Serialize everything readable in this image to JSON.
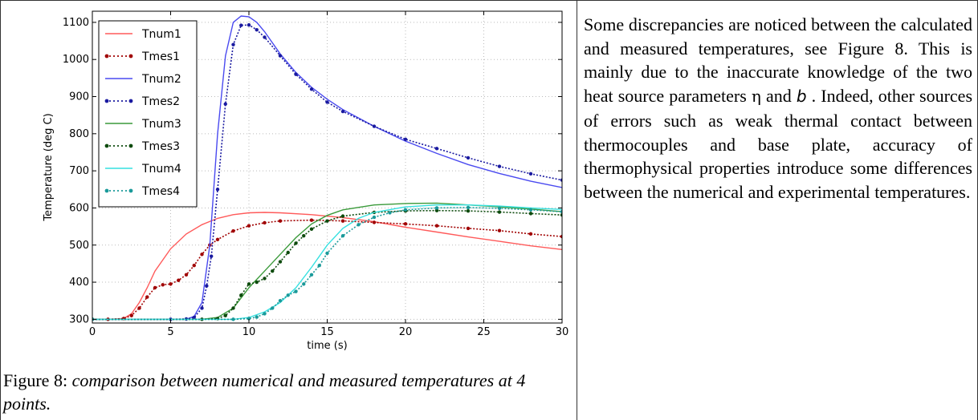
{
  "figure": {
    "caption_label": "Figure 8: ",
    "caption_text": "comparison between numerical and measured temperatures at 4 points."
  },
  "paragraph": {
    "part1": "Some discrepancies are noticed between the calculated and measured temperatures, see Figure 8. This is mainly due to the inaccurate knowledge of the two heat source parameters ",
    "eta": "η",
    "and": " and ",
    "b": "b",
    "part2": " . Indeed, other sources of errors such as weak thermal contact between thermocouples and base plate, accuracy of thermophysical properties introduce some differences between the numerical and experimental temperatures."
  },
  "chart_data": {
    "type": "line",
    "xlabel": "time (s)",
    "ylabel": "Temperature (deg C)",
    "xlim": [
      0,
      30
    ],
    "ylim": [
      290,
      1130
    ],
    "xticks": [
      0,
      5,
      10,
      15,
      20,
      25,
      30
    ],
    "yticks": [
      300,
      400,
      500,
      600,
      700,
      800,
      900,
      1000,
      1100
    ],
    "grid": true,
    "legend_position": "top-left",
    "series": [
      {
        "name": "Tnum1",
        "style": "line",
        "color": "#ff5a5a",
        "x": [
          0,
          1,
          2,
          2.5,
          3,
          3.5,
          4,
          5,
          6,
          7,
          8,
          9,
          10,
          11,
          12,
          14,
          16,
          18,
          20,
          22,
          24,
          26,
          28,
          30
        ],
        "y": [
          300,
          300,
          302,
          315,
          345,
          385,
          430,
          490,
          530,
          555,
          572,
          582,
          587,
          588,
          587,
          582,
          574,
          563,
          548,
          535,
          522,
          510,
          498,
          488
        ]
      },
      {
        "name": "Tmes1",
        "style": "dots",
        "color": "#a00000",
        "x": [
          0,
          1,
          2,
          2.5,
          3,
          3.5,
          4,
          4.5,
          5,
          5.5,
          6,
          6.5,
          7,
          7.5,
          8,
          9,
          10,
          11,
          12,
          14,
          16,
          18,
          20,
          22,
          24,
          26,
          28,
          30
        ],
        "y": [
          300,
          300,
          302,
          310,
          330,
          360,
          385,
          393,
          395,
          405,
          420,
          445,
          475,
          500,
          515,
          538,
          552,
          560,
          565,
          567,
          565,
          561,
          557,
          552,
          545,
          539,
          530,
          523
        ]
      },
      {
        "name": "Tnum2",
        "style": "line",
        "color": "#4a4af0",
        "x": [
          0,
          6,
          6.5,
          7,
          7.5,
          8,
          8.5,
          9,
          9.5,
          10,
          10.5,
          11,
          12,
          13,
          14,
          15,
          16,
          18,
          20,
          22,
          24,
          26,
          28,
          30
        ],
        "y": [
          300,
          300,
          308,
          345,
          500,
          800,
          1010,
          1100,
          1117,
          1115,
          1100,
          1075,
          1015,
          965,
          925,
          893,
          865,
          820,
          780,
          747,
          717,
          693,
          672,
          655
        ]
      },
      {
        "name": "Tmes2",
        "style": "dots",
        "color": "#1a1aa0",
        "x": [
          0,
          5,
          6,
          6.5,
          7,
          7.3,
          7.6,
          8,
          8.5,
          9,
          9.5,
          10,
          10.5,
          11,
          12,
          13,
          14,
          15,
          16,
          18,
          20,
          22,
          24,
          26,
          28,
          30
        ],
        "y": [
          300,
          300,
          301,
          305,
          330,
          390,
          470,
          650,
          880,
          1040,
          1092,
          1093,
          1080,
          1060,
          1010,
          960,
          920,
          885,
          860,
          820,
          785,
          760,
          735,
          712,
          692,
          675
        ]
      },
      {
        "name": "Tnum3",
        "style": "line",
        "color": "#3a9a3a",
        "x": [
          0,
          7,
          8,
          9,
          10,
          11,
          12,
          13,
          14,
          15,
          16,
          18,
          20,
          22,
          24,
          26,
          28,
          30
        ],
        "y": [
          300,
          300,
          305,
          330,
          385,
          430,
          475,
          520,
          557,
          580,
          595,
          608,
          612,
          613,
          608,
          603,
          597,
          590
        ]
      },
      {
        "name": "Tmes3",
        "style": "dots",
        "color": "#0c4a0c",
        "x": [
          0,
          7,
          8,
          8.5,
          9,
          9.5,
          10,
          10.5,
          11,
          11.5,
          12,
          12.5,
          13,
          13.5,
          14,
          15,
          16,
          18,
          20,
          22,
          24,
          26,
          28,
          30
        ],
        "y": [
          300,
          300,
          302,
          310,
          330,
          365,
          395,
          400,
          410,
          430,
          455,
          480,
          505,
          525,
          543,
          565,
          578,
          588,
          592,
          593,
          592,
          589,
          585,
          581
        ]
      },
      {
        "name": "Tnum4",
        "style": "line",
        "color": "#35e0e0",
        "x": [
          0,
          9,
          10,
          11,
          12,
          13,
          14,
          15,
          16,
          17,
          18,
          20,
          22,
          24,
          26,
          28,
          30
        ],
        "y": [
          300,
          300,
          305,
          320,
          345,
          385,
          440,
          500,
          545,
          572,
          588,
          603,
          608,
          608,
          605,
          600,
          596
        ]
      },
      {
        "name": "Tmes4",
        "style": "dots",
        "color": "#1a9a9a",
        "x": [
          0,
          9,
          10,
          10.5,
          11,
          11.5,
          12,
          12.5,
          13,
          13.5,
          14,
          14.5,
          15,
          16,
          17,
          18,
          19,
          20,
          22,
          24,
          26,
          28,
          30
        ],
        "y": [
          300,
          300,
          302,
          306,
          315,
          330,
          350,
          365,
          375,
          395,
          420,
          445,
          478,
          525,
          555,
          575,
          587,
          595,
          600,
          601,
          599,
          595,
          590
        ]
      }
    ]
  }
}
